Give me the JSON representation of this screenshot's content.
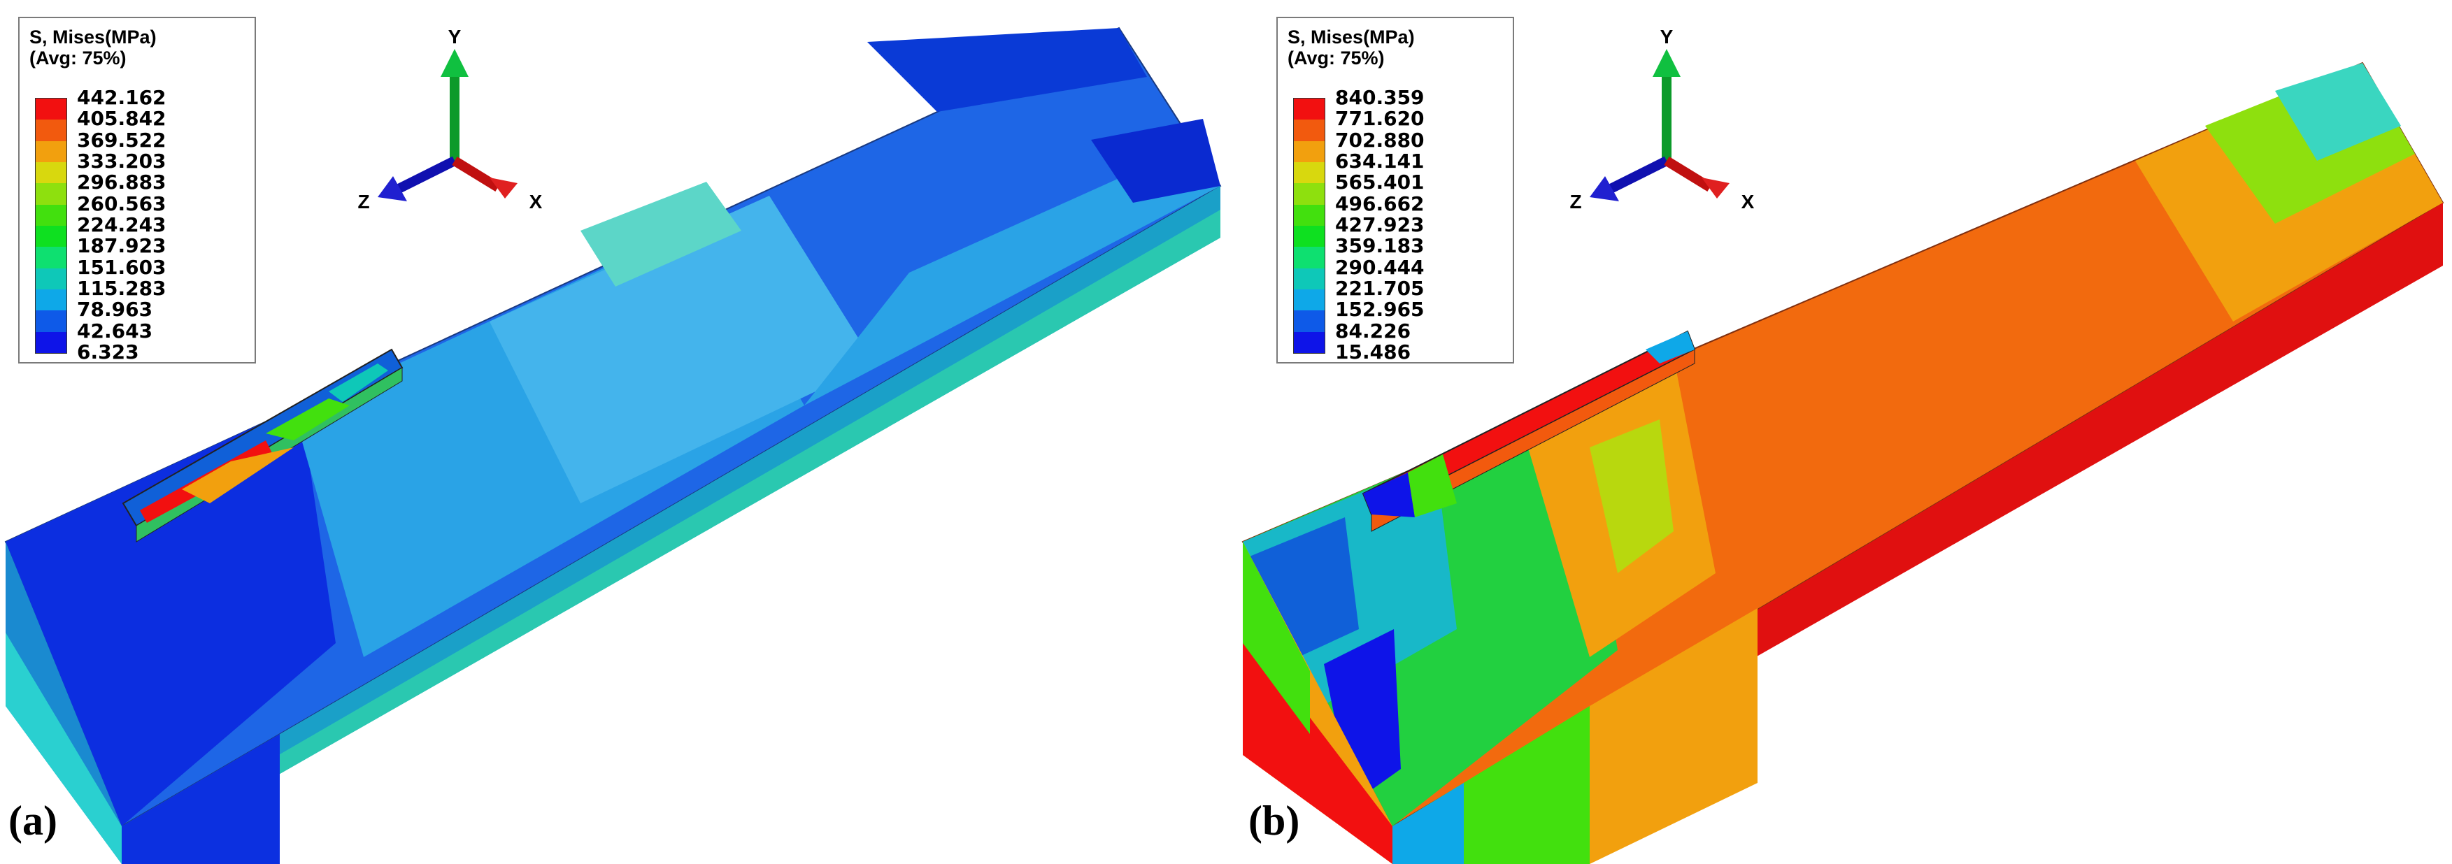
{
  "panels": [
    {
      "label": "(a)",
      "legend": {
        "title": "S, Mises",
        "unit": "(MPa)",
        "average": "(Avg: 75%)",
        "values": [
          "442.162",
          "405.842",
          "369.522",
          "333.203",
          "296.883",
          "260.563",
          "224.243",
          "187.923",
          "151.603",
          "115.283",
          "78.963",
          "42.643",
          "6.323"
        ],
        "colors": [
          "#f21010",
          "#f25a0e",
          "#f2a00e",
          "#d8d80e",
          "#8ee00e",
          "#42e00e",
          "#0ee020",
          "#0ee070",
          "#0ec8b8",
          "#0ea8e8",
          "#0e5ae8",
          "#0e14e8"
        ]
      },
      "axes": {
        "y": "Y",
        "z": "Z",
        "x": "X"
      }
    },
    {
      "label": "(b)",
      "legend": {
        "title": "S, Mises",
        "unit": "(MPa)",
        "average": "(Avg: 75%)",
        "values": [
          "840.359",
          "771.620",
          "702.880",
          "634.141",
          "565.401",
          "496.662",
          "427.923",
          "359.183",
          "290.444",
          "221.705",
          "152.965",
          "84.226",
          "15.486"
        ],
        "colors": [
          "#f21010",
          "#f25a0e",
          "#f2a00e",
          "#d8d80e",
          "#8ee00e",
          "#42e00e",
          "#0ee020",
          "#0ee070",
          "#0ec8b8",
          "#0ea8e8",
          "#0e5ae8",
          "#0e14e8"
        ]
      },
      "axes": {
        "y": "Y",
        "z": "Z",
        "x": "X"
      }
    }
  ]
}
